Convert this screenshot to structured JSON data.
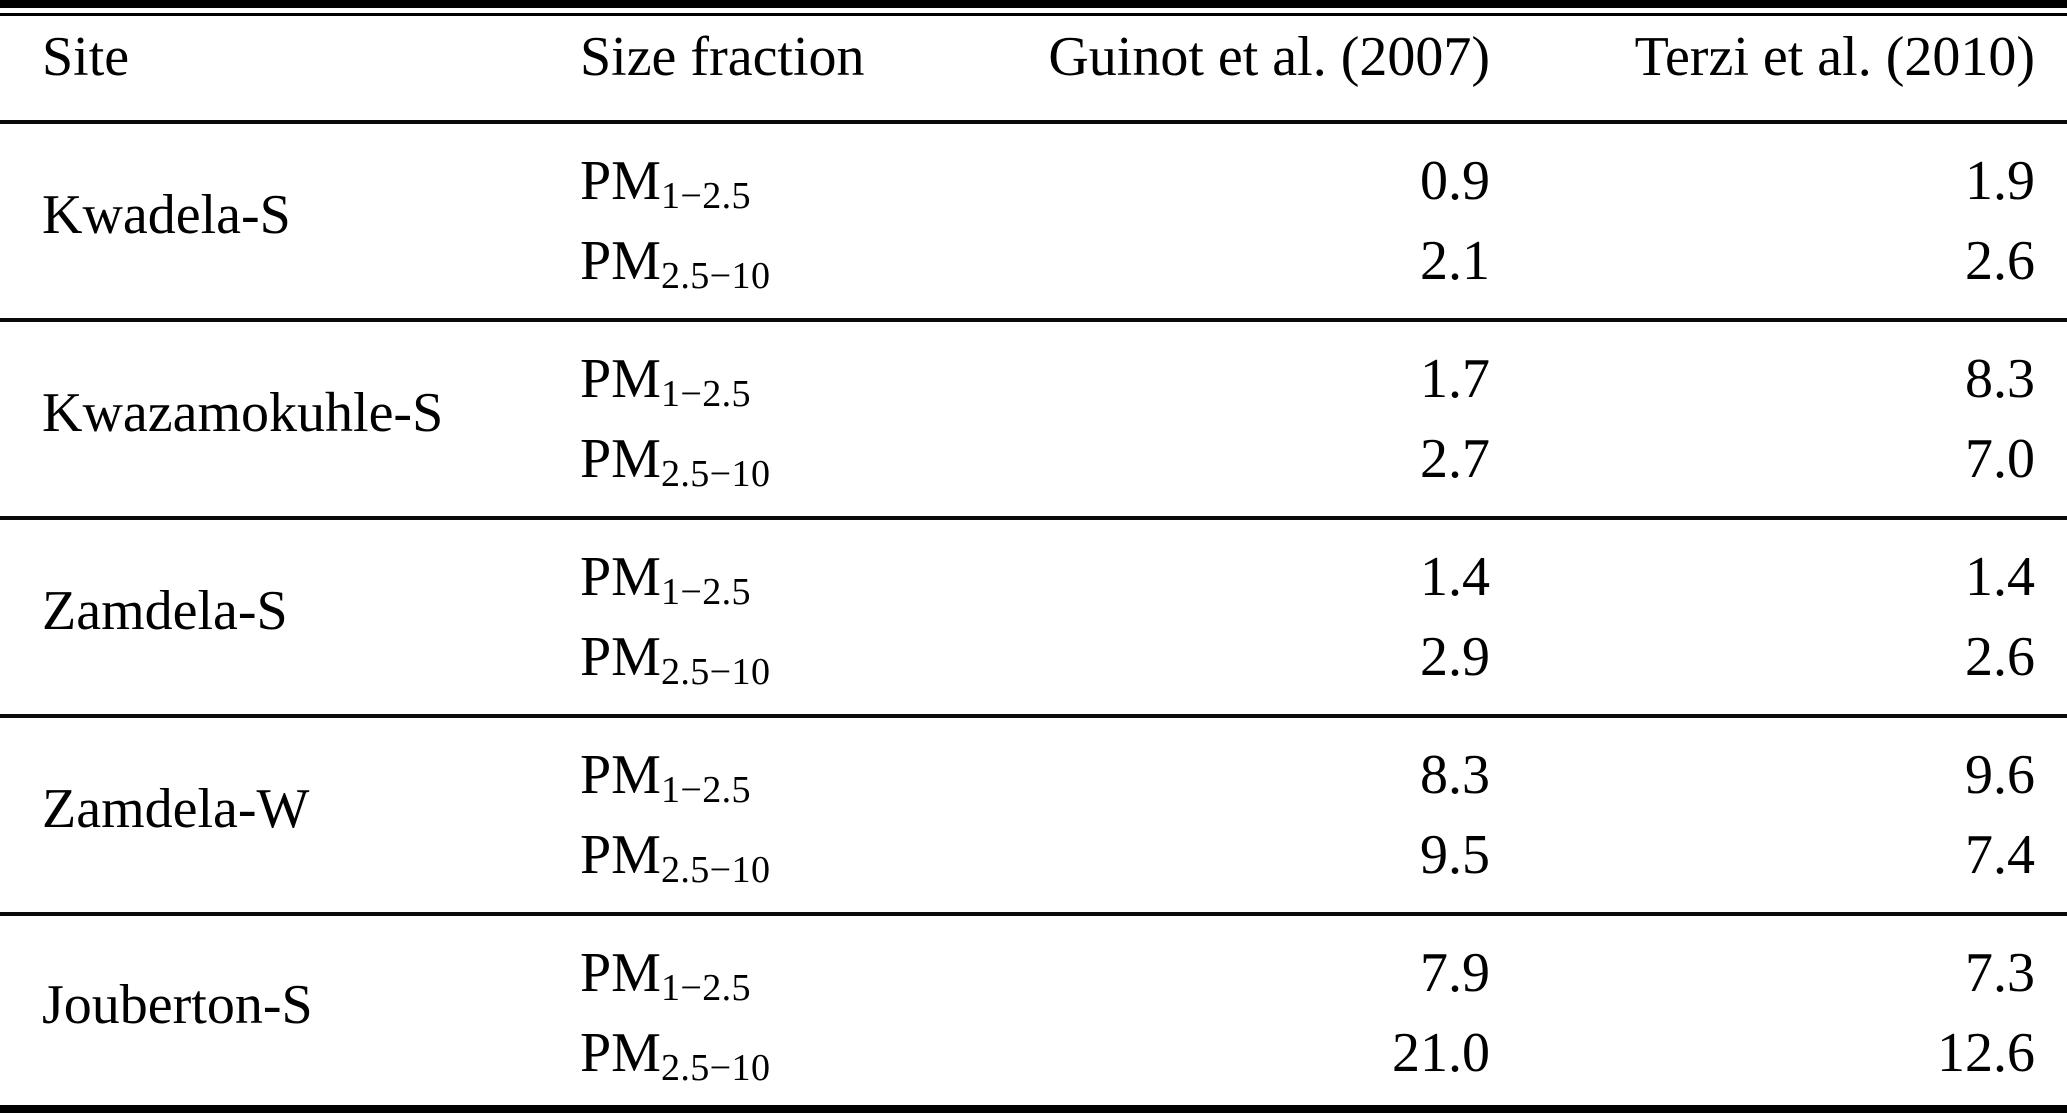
{
  "table": {
    "headers": {
      "site": "Site",
      "size_fraction": "Size fraction",
      "guinot": "Guinot et al. (2007)",
      "terzi": "Terzi et al. (2010)"
    },
    "rows": [
      {
        "site": "Kwadela-S",
        "fractions": [
          {
            "base": "PM",
            "sub": "1−2.5",
            "guinot": "0.9",
            "terzi": "1.9"
          },
          {
            "base": "PM",
            "sub": "2.5−10",
            "guinot": "2.1",
            "terzi": "2.6"
          }
        ]
      },
      {
        "site": "Kwazamokuhle-S",
        "fractions": [
          {
            "base": "PM",
            "sub": "1−2.5",
            "guinot": "1.7",
            "terzi": "8.3"
          },
          {
            "base": "PM",
            "sub": "2.5−10",
            "guinot": "2.7",
            "terzi": "7.0"
          }
        ]
      },
      {
        "site": "Zamdela-S",
        "fractions": [
          {
            "base": "PM",
            "sub": "1−2.5",
            "guinot": "1.4",
            "terzi": "1.4"
          },
          {
            "base": "PM",
            "sub": "2.5−10",
            "guinot": "2.9",
            "terzi": "2.6"
          }
        ]
      },
      {
        "site": "Zamdela-W",
        "fractions": [
          {
            "base": "PM",
            "sub": "1−2.5",
            "guinot": "8.3",
            "terzi": "9.6"
          },
          {
            "base": "PM",
            "sub": "2.5−10",
            "guinot": "9.5",
            "terzi": "7.4"
          }
        ]
      },
      {
        "site": "Jouberton-S",
        "fractions": [
          {
            "base": "PM",
            "sub": "1−2.5",
            "guinot": "7.9",
            "terzi": "7.3"
          },
          {
            "base": "PM",
            "sub": "2.5−10",
            "guinot": "21.0",
            "terzi": "12.6"
          }
        ]
      }
    ]
  },
  "colors": {
    "text": "#000000",
    "background": "#ffffff",
    "rule": "#000000"
  }
}
